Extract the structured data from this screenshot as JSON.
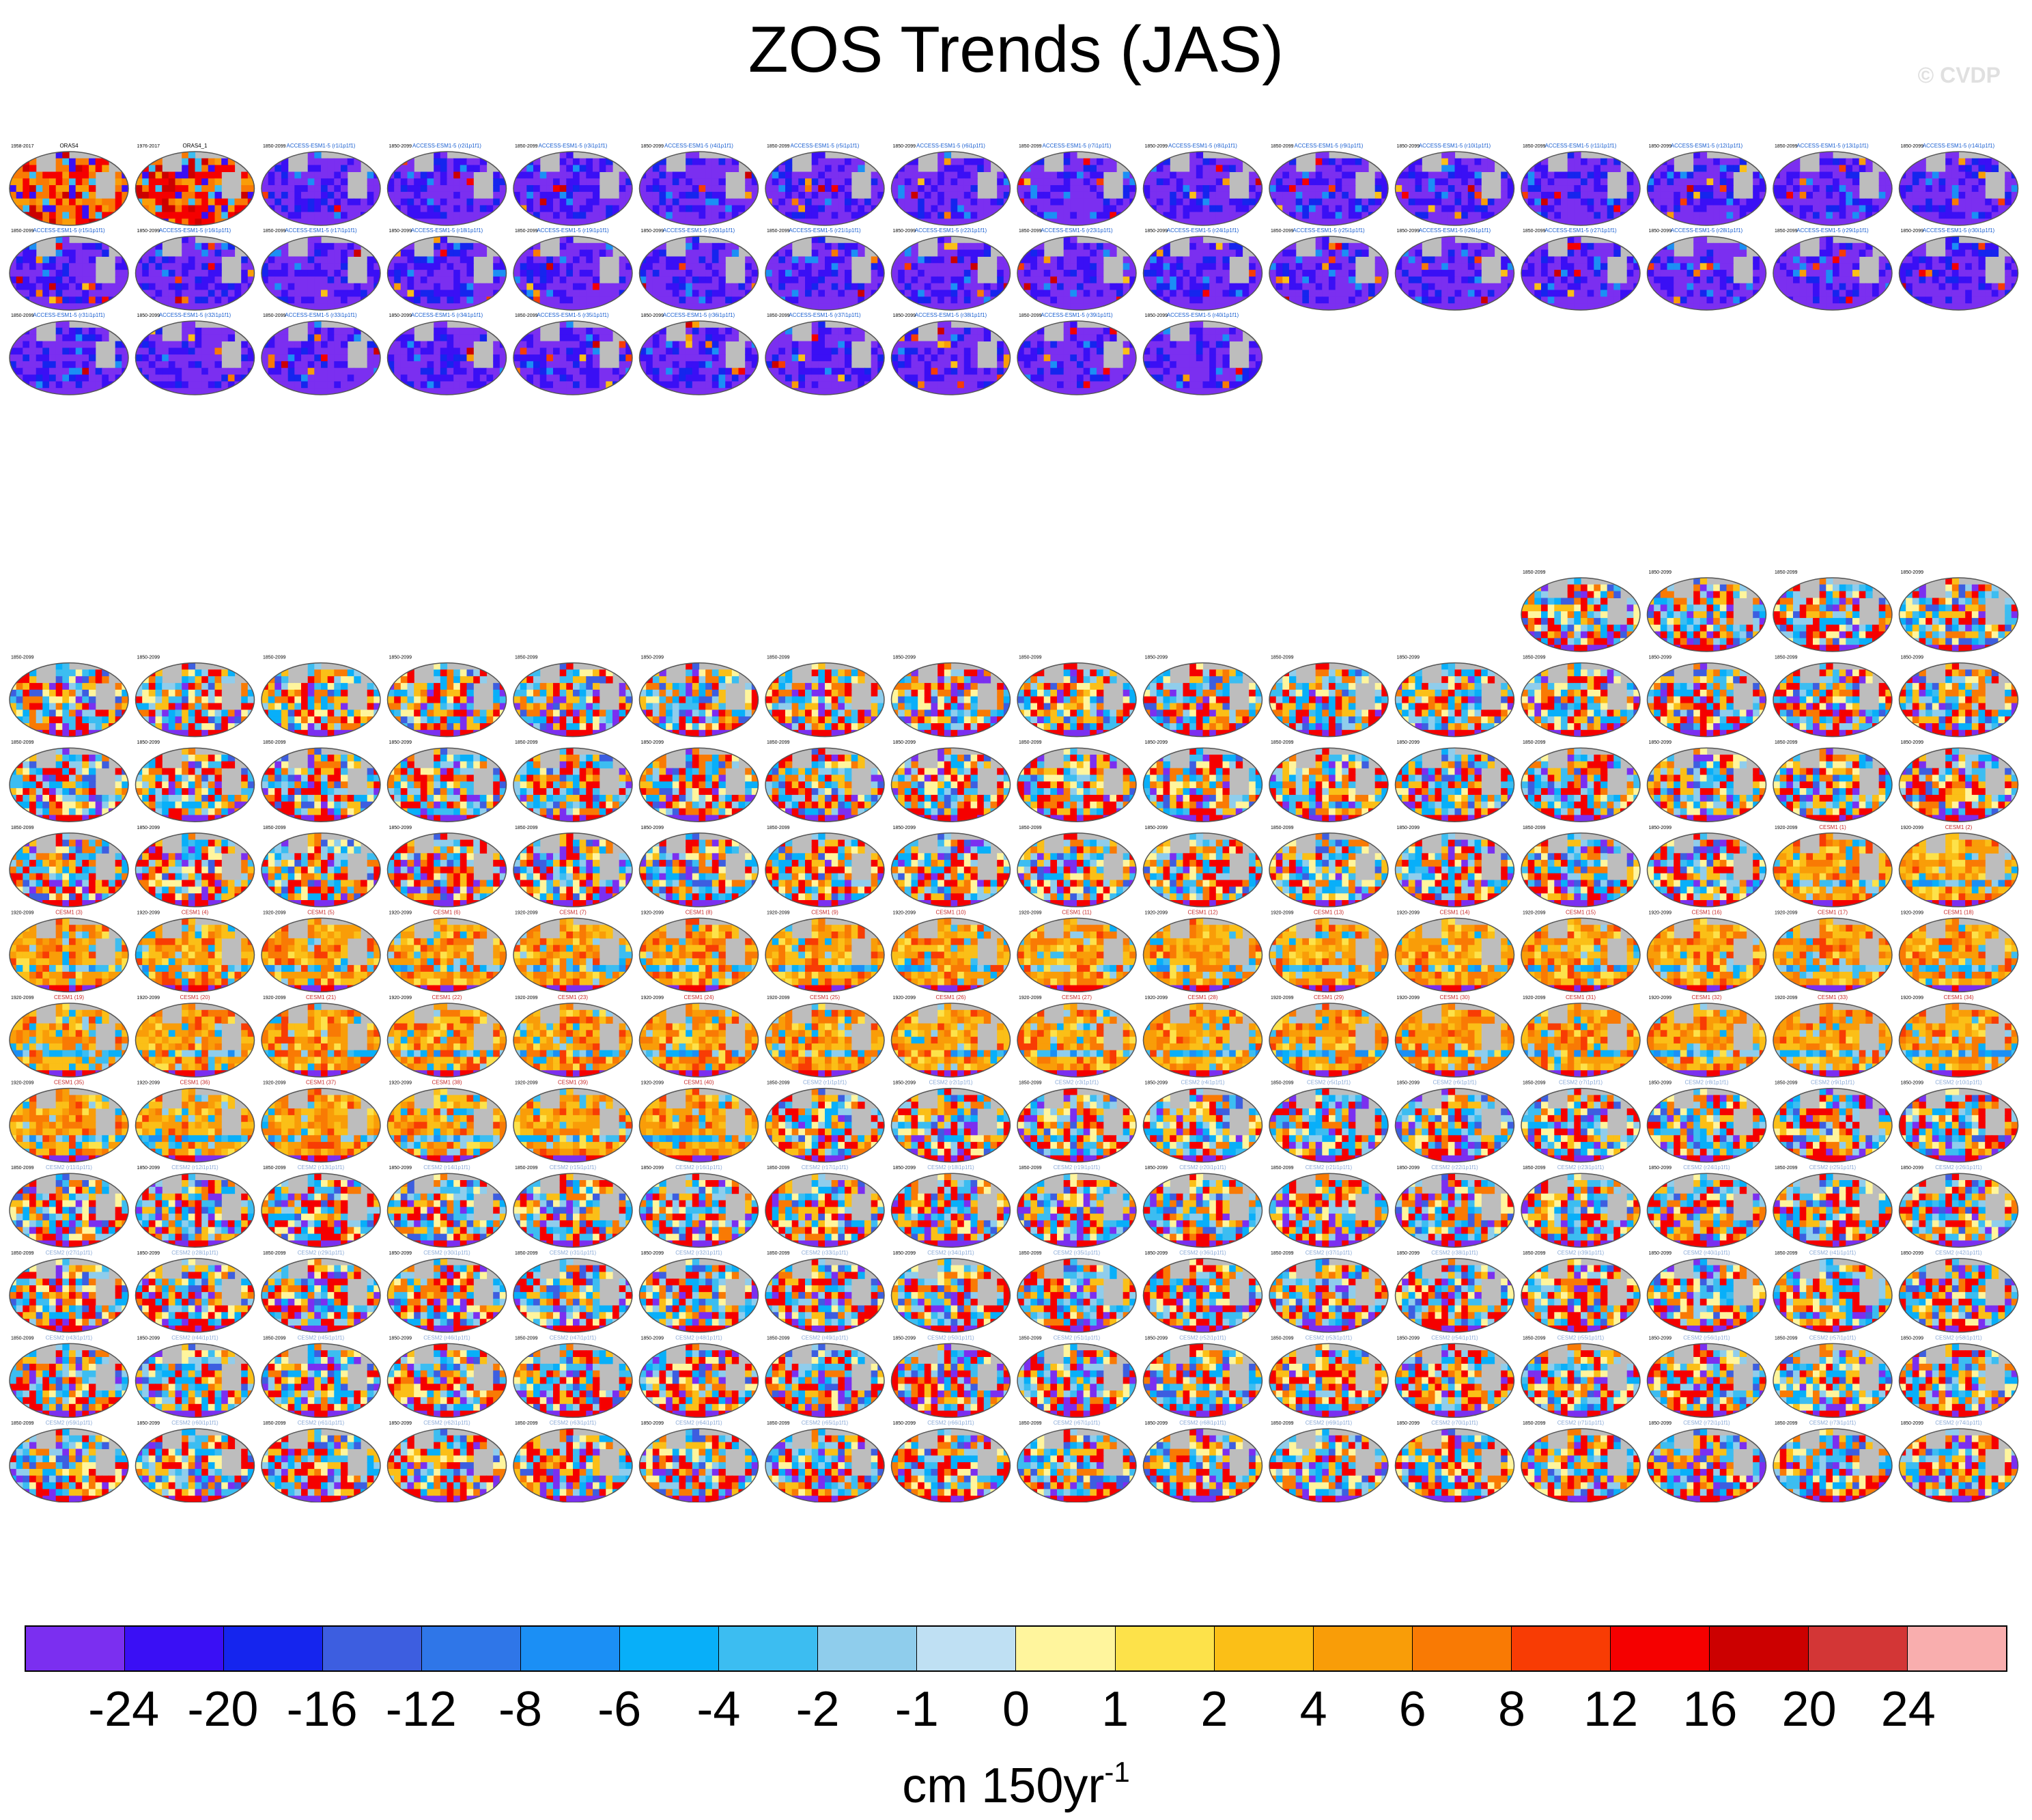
{
  "title": "ZOS Trends (JAS)",
  "watermark": "© CVDP",
  "colorbar": {
    "colors": [
      "#7b2ff0",
      "#3a0ff5",
      "#1525ee",
      "#3d5ee0",
      "#2f76e8",
      "#1b8ff5",
      "#08aff9",
      "#3cbdf1",
      "#8fcdec",
      "#bfe0f3",
      "#fff59d",
      "#fde24a",
      "#fbbf17",
      "#f99d08",
      "#f97a04",
      "#f83c04",
      "#f50000",
      "#cc0000",
      "#d33636",
      "#f9aeae"
    ],
    "labels": [
      "-24",
      "-20",
      "-16",
      "-12",
      "-8",
      "-6",
      "-4",
      "-2",
      "-1",
      "0",
      "1",
      "2",
      "4",
      "6",
      "8",
      "12",
      "16",
      "20",
      "24"
    ],
    "units_base": "cm 150yr",
    "units_exp": "-1"
  },
  "chart_data": {
    "type": "heatmap",
    "title": "ZOS Trends (JAS)",
    "variable": "ZOS",
    "season": "JAS",
    "units": "cm 150yr-1",
    "contour_levels": [
      -24,
      -20,
      -16,
      -12,
      -8,
      -6,
      -4,
      -2,
      -1,
      0,
      1,
      2,
      4,
      6,
      8,
      12,
      16,
      20,
      24
    ],
    "observations": [
      {
        "name": "ORAS4",
        "period": "1958-2017"
      },
      {
        "name": "ORAS4_1",
        "period": "1976-2017"
      }
    ],
    "groups": [
      {
        "model": "ACCESS-ESM1-5",
        "members": 40,
        "period": "1850-2099",
        "dominant_trend": "negative"
      },
      {
        "model": "CanESM",
        "members": 50,
        "period": "1850-2099",
        "dominant_trend": "mixed"
      },
      {
        "model": "CESM1",
        "members": 40,
        "period": "1920-2099",
        "dominant_trend": "positive"
      },
      {
        "model": "CESM2",
        "members": 100,
        "period": "1850-2099",
        "dominant_trend": "mixed"
      }
    ]
  }
}
